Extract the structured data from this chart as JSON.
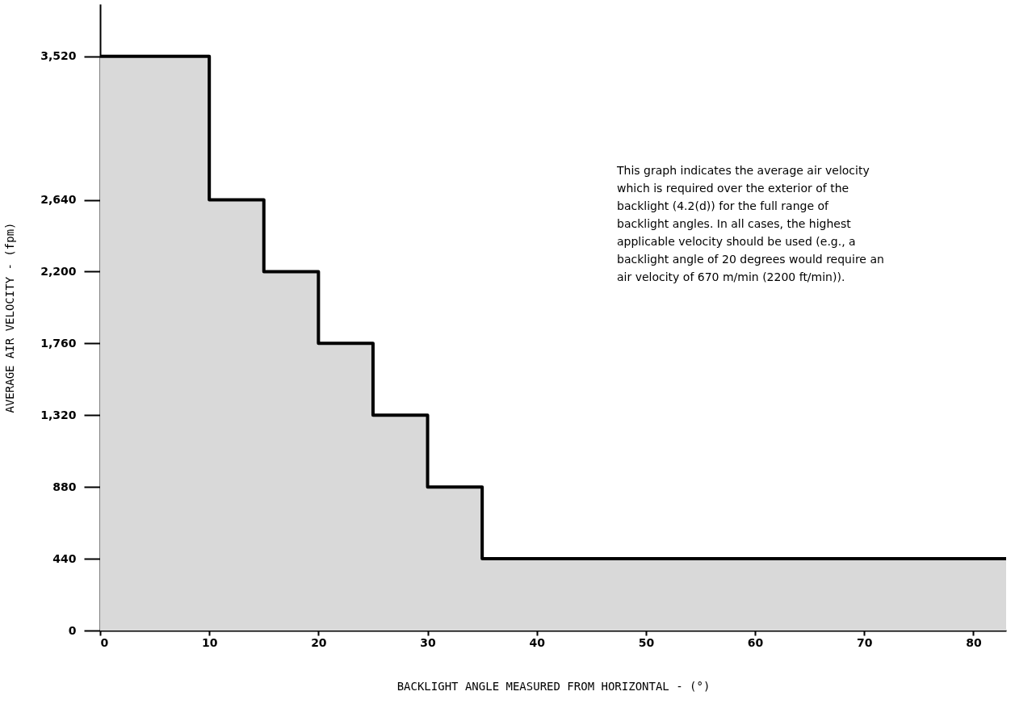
{
  "chart_data": {
    "type": "step",
    "x": [
      0,
      10,
      15,
      20,
      25,
      30,
      35,
      83
    ],
    "series": [
      {
        "type": "area",
        "color": "#d9d9d9",
        "values": [
          3520,
          2640,
          2200,
          1760,
          1320,
          880,
          440,
          440
        ]
      },
      {
        "type": "step",
        "color": "#000000",
        "values": [
          3520,
          2640,
          2200,
          1760,
          1320,
          880,
          440,
          440
        ]
      }
    ],
    "xlabel": "BACKLIGHT ANGLE MEASURED FROM HORIZONTAL - (°)",
    "ylabel": "AVERAGE AIR VELOCITY - (fpm)",
    "xlim": [
      0,
      83
    ],
    "xticks": [
      0,
      10,
      20,
      30,
      40,
      50,
      60,
      70,
      80
    ],
    "ylim": [
      0,
      3840
    ],
    "yticks": [
      0,
      440,
      880,
      {
        "value": 1320,
        "label": "1,320"
      },
      {
        "value": 1760,
        "label": "1,760"
      },
      {
        "value": 2200,
        "label": "2,200"
      },
      {
        "value": 2640,
        "label": "2,640"
      },
      {
        "value": 3520,
        "label": "3,520"
      }
    ],
    "grid": false,
    "annotations": [
      "This graph indicates the average air velocity which is required over the exterior of the backlight (4.2(d)) for the full range of backlight angles.  In all cases, the highest applicable velocity should be used (e.g., a backlight angle of 20 degrees would require an air velocity of 670 m/min (2200 ft/min))."
    ]
  }
}
